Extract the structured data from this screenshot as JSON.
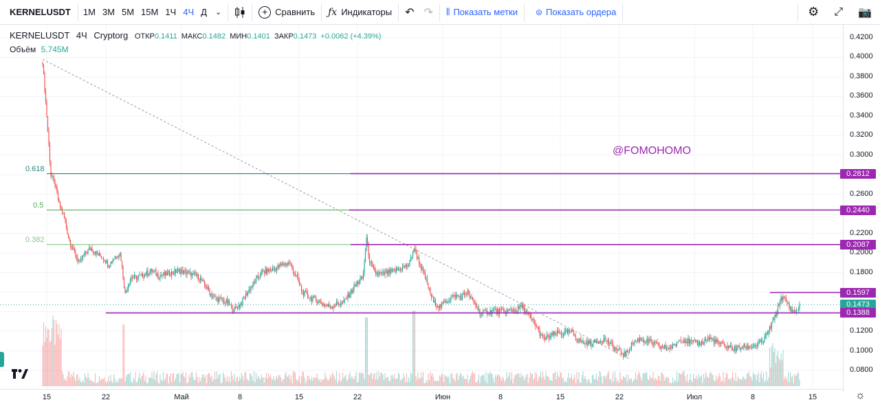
{
  "toolbar": {
    "symbol": "KERNELUSDT",
    "intervals": [
      "1М",
      "3М",
      "5М",
      "15М",
      "1Ч",
      "4Ч",
      "Д"
    ],
    "active_interval": "4Ч",
    "compare": "Сравнить",
    "indicators": "Индикаторы",
    "show_marks": "Показать метки",
    "show_orders": "Показать ордера"
  },
  "legend": {
    "symbol": "KERNELUSDT",
    "interval": "4Ч",
    "exchange": "Cryptorg",
    "open_label": "ОТКР",
    "open": "0.1411",
    "high_label": "МАКС",
    "high": "0.1482",
    "low_label": "МИН",
    "low": "0.1401",
    "close_label": "ЗАКР",
    "close": "0.1473",
    "change": "+0.0062 (+4.39%)",
    "volume_label": "Объём",
    "volume": "5.745M"
  },
  "watermark": "@FOMOHOMO",
  "chart_data": {
    "type": "candlestick",
    "price_axis": [
      "0.4200",
      "0.4000",
      "0.3800",
      "0.3600",
      "0.3400",
      "0.3200",
      "0.3000",
      "0.2800",
      "0.2600",
      "0.2400",
      "0.2200",
      "0.2000",
      "0.1800",
      "0.1600",
      "0.1400",
      "0.1200",
      "0.1000",
      "0.0800"
    ],
    "ylim": [
      0.07,
      0.43
    ],
    "time_labels": [
      "15",
      "22",
      "Май",
      "8",
      "15",
      "22",
      "Июн",
      "8",
      "15",
      "22",
      "Июл",
      "8",
      "15"
    ],
    "price_tags": [
      {
        "value": "0.2812",
        "color": "#9c27b0"
      },
      {
        "value": "0.2440",
        "color": "#9c27b0"
      },
      {
        "value": "0.2087",
        "color": "#9c27b0"
      },
      {
        "value": "0.1597",
        "color": "#9c27b0"
      },
      {
        "value": "0.1473",
        "color": "#26a69a"
      },
      {
        "value": "0.1388",
        "color": "#9c27b0"
      }
    ],
    "fib_levels": [
      {
        "label": "0.618",
        "price": 0.2812,
        "color": "#26847a"
      },
      {
        "label": "0.5",
        "price": 0.244,
        "color": "#4caf50"
      },
      {
        "label": "0.382",
        "price": 0.2087,
        "color": "#81c784"
      }
    ],
    "horizontal_lines": [
      {
        "price": 0.2812,
        "x_start": 510,
        "color": "#9c27b0"
      },
      {
        "price": 0.244,
        "x_start": 508,
        "color": "#9c27b0"
      },
      {
        "price": 0.2087,
        "x_start": 510,
        "color": "#9c27b0"
      },
      {
        "price": 0.1597,
        "x_start": 1120,
        "color": "#9c27b0"
      },
      {
        "price": 0.1388,
        "x_start": 154,
        "color": "#9c27b0"
      }
    ],
    "trendline": {
      "from": [
        62,
        0.398
      ],
      "to": [
        915,
        0.092
      ]
    },
    "price_path": [
      [
        62,
        0.395
      ],
      [
        68,
        0.34
      ],
      [
        74,
        0.28
      ],
      [
        80,
        0.27
      ],
      [
        86,
        0.25
      ],
      [
        92,
        0.24
      ],
      [
        100,
        0.215
      ],
      [
        108,
        0.2
      ],
      [
        116,
        0.19
      ],
      [
        124,
        0.2
      ],
      [
        132,
        0.205
      ],
      [
        140,
        0.2
      ],
      [
        150,
        0.195
      ],
      [
        158,
        0.188
      ],
      [
        166,
        0.195
      ],
      [
        175,
        0.2
      ],
      [
        182,
        0.158
      ],
      [
        190,
        0.175
      ],
      [
        200,
        0.175
      ],
      [
        210,
        0.178
      ],
      [
        220,
        0.182
      ],
      [
        230,
        0.177
      ],
      [
        240,
        0.178
      ],
      [
        250,
        0.18
      ],
      [
        260,
        0.182
      ],
      [
        270,
        0.18
      ],
      [
        280,
        0.178
      ],
      [
        290,
        0.175
      ],
      [
        300,
        0.165
      ],
      [
        310,
        0.155
      ],
      [
        320,
        0.152
      ],
      [
        330,
        0.15
      ],
      [
        340,
        0.142
      ],
      [
        350,
        0.148
      ],
      [
        360,
        0.16
      ],
      [
        370,
        0.17
      ],
      [
        380,
        0.18
      ],
      [
        390,
        0.182
      ],
      [
        400,
        0.184
      ],
      [
        410,
        0.188
      ],
      [
        420,
        0.19
      ],
      [
        430,
        0.178
      ],
      [
        440,
        0.16
      ],
      [
        450,
        0.155
      ],
      [
        460,
        0.152
      ],
      [
        470,
        0.148
      ],
      [
        480,
        0.145
      ],
      [
        490,
        0.148
      ],
      [
        500,
        0.15
      ],
      [
        510,
        0.16
      ],
      [
        520,
        0.17
      ],
      [
        528,
        0.175
      ],
      [
        533,
        0.215
      ],
      [
        538,
        0.19
      ],
      [
        545,
        0.18
      ],
      [
        555,
        0.178
      ],
      [
        565,
        0.18
      ],
      [
        575,
        0.182
      ],
      [
        585,
        0.185
      ],
      [
        595,
        0.188
      ],
      [
        602,
        0.205
      ],
      [
        610,
        0.19
      ],
      [
        620,
        0.172
      ],
      [
        630,
        0.15
      ],
      [
        640,
        0.145
      ],
      [
        650,
        0.152
      ],
      [
        660,
        0.156
      ],
      [
        670,
        0.155
      ],
      [
        680,
        0.16
      ],
      [
        690,
        0.148
      ],
      [
        700,
        0.138
      ],
      [
        710,
        0.14
      ],
      [
        720,
        0.141
      ],
      [
        730,
        0.14
      ],
      [
        740,
        0.141
      ],
      [
        750,
        0.142
      ],
      [
        760,
        0.145
      ],
      [
        770,
        0.135
      ],
      [
        780,
        0.125
      ],
      [
        790,
        0.112
      ],
      [
        800,
        0.115
      ],
      [
        810,
        0.118
      ],
      [
        820,
        0.118
      ],
      [
        830,
        0.12
      ],
      [
        840,
        0.112
      ],
      [
        850,
        0.108
      ],
      [
        860,
        0.108
      ],
      [
        870,
        0.11
      ],
      [
        880,
        0.112
      ],
      [
        890,
        0.105
      ],
      [
        900,
        0.1
      ],
      [
        910,
        0.096
      ],
      [
        920,
        0.108
      ],
      [
        930,
        0.112
      ],
      [
        940,
        0.11
      ],
      [
        950,
        0.108
      ],
      [
        960,
        0.104
      ],
      [
        970,
        0.103
      ],
      [
        980,
        0.105
      ],
      [
        990,
        0.112
      ],
      [
        1000,
        0.11
      ],
      [
        1010,
        0.108
      ],
      [
        1020,
        0.108
      ],
      [
        1030,
        0.113
      ],
      [
        1040,
        0.11
      ],
      [
        1050,
        0.106
      ],
      [
        1060,
        0.104
      ],
      [
        1070,
        0.102
      ],
      [
        1080,
        0.104
      ],
      [
        1090,
        0.104
      ],
      [
        1100,
        0.106
      ],
      [
        1110,
        0.11
      ],
      [
        1118,
        0.12
      ],
      [
        1124,
        0.13
      ],
      [
        1130,
        0.14
      ],
      [
        1136,
        0.155
      ],
      [
        1142,
        0.152
      ],
      [
        1148,
        0.145
      ],
      [
        1154,
        0.14
      ],
      [
        1160,
        0.142
      ],
      [
        1164,
        0.147
      ]
    ]
  }
}
